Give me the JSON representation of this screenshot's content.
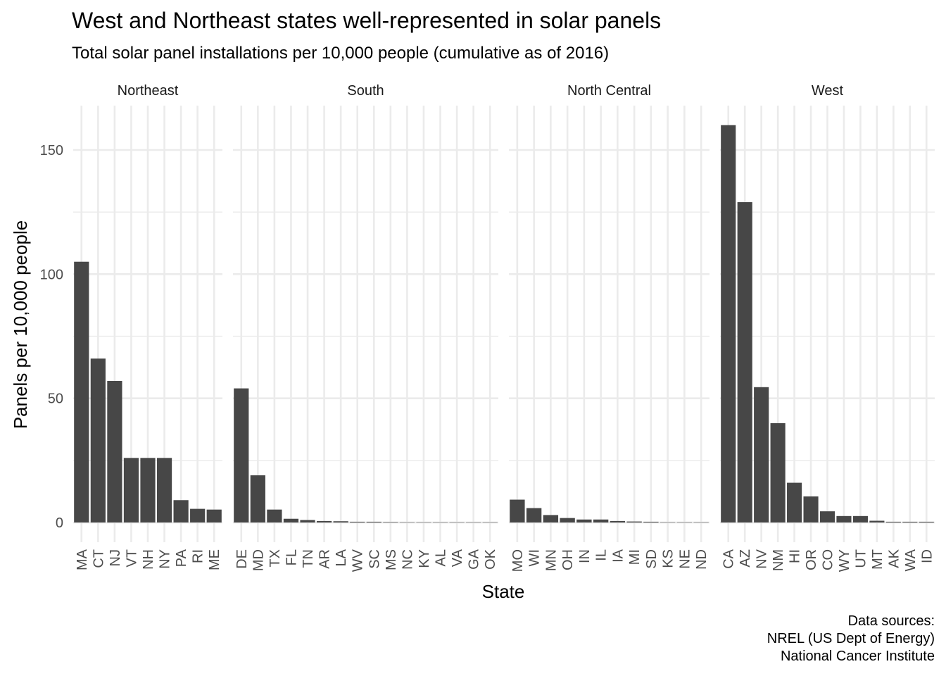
{
  "chart_data": {
    "type": "bar",
    "title": "West and Northeast states well-represented in solar panels",
    "subtitle": "Total solar panel installations per 10,000 people (cumulative as of 2016)",
    "xlabel": "State",
    "ylabel": "Panels per 10,000 people",
    "ylim": [
      0,
      160
    ],
    "yticks": [
      0,
      50,
      100,
      150
    ],
    "grid": true,
    "bar_color": "#474747",
    "caption": [
      "Data sources:",
      "NREL (US Dept of Energy)",
      "National Cancer Institute"
    ],
    "facets": [
      {
        "name": "Northeast",
        "categories": [
          "MA",
          "CT",
          "NJ",
          "VT",
          "NH",
          "NY",
          "PA",
          "RI",
          "ME"
        ],
        "values": [
          105,
          66,
          57,
          26,
          26,
          26,
          9,
          5.5,
          5.2
        ]
      },
      {
        "name": "South",
        "categories": [
          "DE",
          "MD",
          "TX",
          "FL",
          "TN",
          "AR",
          "LA",
          "WV",
          "SC",
          "MS",
          "NC",
          "KY",
          "AL",
          "VA",
          "GA",
          "OK"
        ],
        "values": [
          54,
          19,
          5.2,
          1.5,
          1,
          0.6,
          0.5,
          0.3,
          0.3,
          0.2,
          0.1,
          0.1,
          0.1,
          0.1,
          0.1,
          0.1
        ]
      },
      {
        "name": "North Central",
        "categories": [
          "MO",
          "WI",
          "MN",
          "OH",
          "IN",
          "IL",
          "IA",
          "MI",
          "SD",
          "KS",
          "NE",
          "ND"
        ],
        "values": [
          9.2,
          5.8,
          3,
          1.8,
          1.2,
          1.2,
          0.6,
          0.4,
          0.3,
          0.1,
          0.1,
          0.1
        ]
      },
      {
        "name": "West",
        "categories": [
          "CA",
          "AZ",
          "NV",
          "NM",
          "HI",
          "OR",
          "CO",
          "WY",
          "UT",
          "MT",
          "AK",
          "WA",
          "ID"
        ],
        "values": [
          160,
          129,
          54.5,
          40,
          16,
          10.5,
          4.5,
          2.6,
          2.6,
          0.7,
          0.3,
          0.3,
          0.3
        ]
      }
    ]
  }
}
